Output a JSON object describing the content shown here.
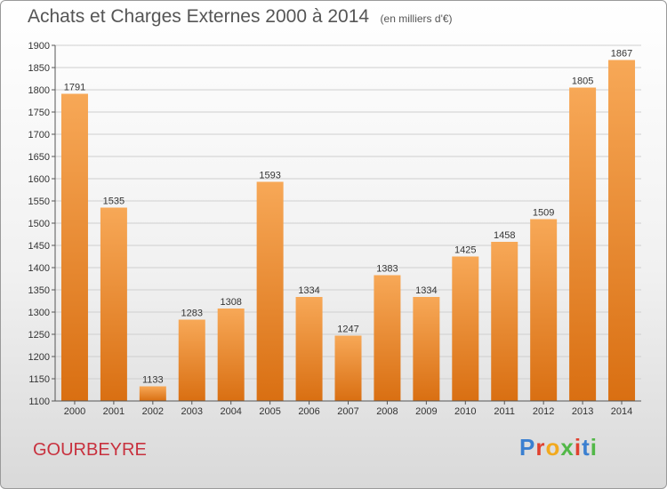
{
  "header": {
    "title": "Achats et Charges Externes 2000 à 2014",
    "unit": "(en milliers d'€)"
  },
  "footer": {
    "place": "GOURBEYRE",
    "logo": "Proxiti",
    "logo_colors": [
      "#3a7fd0",
      "#e0412f",
      "#f2a91d",
      "#52b848",
      "#e0412f",
      "#3a7fd0",
      "#52b848"
    ]
  },
  "colors": {
    "bar_light": "#f7a857",
    "bar_dark": "#d96f12",
    "grid": "#cfcfcf",
    "axis": "#555555",
    "place": "#c8313e"
  },
  "chart_data": {
    "type": "bar",
    "title": "Achats et Charges Externes 2000 à 2014",
    "subtitle": "(en milliers d'€)",
    "xlabel": "",
    "ylabel": "",
    "categories": [
      "2000",
      "2001",
      "2002",
      "2003",
      "2004",
      "2005",
      "2006",
      "2007",
      "2008",
      "2009",
      "2010",
      "2011",
      "2012",
      "2013",
      "2014"
    ],
    "values": [
      1791,
      1535,
      1133,
      1283,
      1308,
      1593,
      1334,
      1247,
      1383,
      1334,
      1425,
      1458,
      1509,
      1805,
      1867
    ],
    "ylim": [
      1100,
      1900
    ],
    "yticks": [
      1100,
      1150,
      1200,
      1250,
      1300,
      1350,
      1400,
      1450,
      1500,
      1550,
      1600,
      1650,
      1700,
      1750,
      1800,
      1850,
      1900
    ],
    "grid": true,
    "legend": "none"
  }
}
